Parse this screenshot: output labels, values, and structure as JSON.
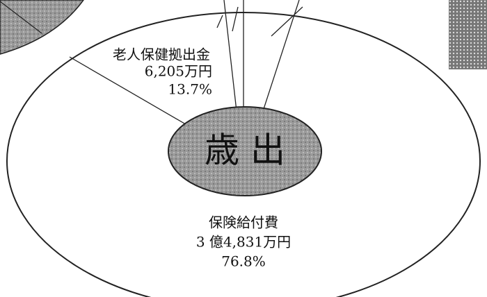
{
  "center_label": "歳 出",
  "segments": [
    {
      "name": "老人保健拠出金",
      "amount": "6,205万円",
      "share": "13.7%"
    },
    {
      "name": "保険給付費",
      "amount": "3 億4,831万円",
      "share": "76.8%"
    }
  ]
}
